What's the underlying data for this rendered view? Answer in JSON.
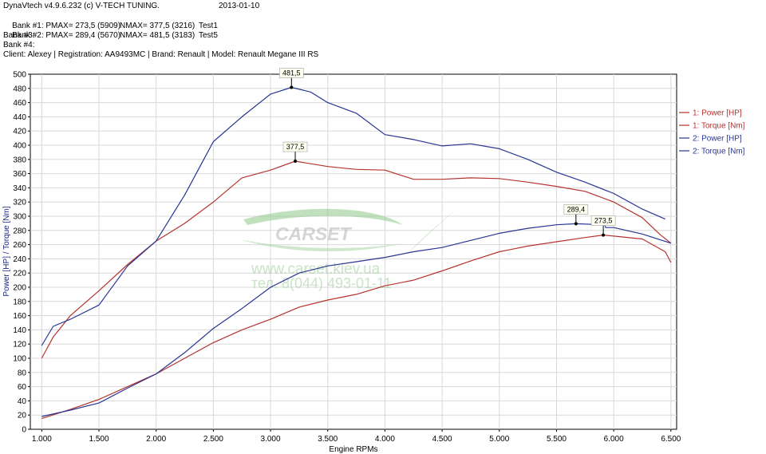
{
  "header": {
    "line1": "DynaVtech v4.9.6.232 (c) V-TECH TUNING.",
    "date": "2013-01-10",
    "bank1": {
      "label": "Bank #1: PMAX= 273,5 (5909)",
      "nmax": "NMAX= 377,5 (3216)",
      "test": "Test1"
    },
    "bank2": {
      "label": "Bank #2: PMAX= 289,4 (5670)",
      "nmax": "NMAX= 481,5 (3183)",
      "test": "Test5"
    },
    "bank3": "Bank #3:",
    "bank4": "Bank #4:",
    "client": "Client: Alexey | Registration: AA9493MC | Brand: Renault | Model: Renault Megane III RS"
  },
  "watermark": {
    "brand": "CARSET",
    "url": "www.carset.kiev.ua",
    "phone": "тел. 8(044) 493-01-11"
  },
  "chart_data": {
    "type": "line",
    "xlabel": "Engine RPMs",
    "ylabel": "Power [HP] / Torque [Nm]",
    "xlim": [
      900,
      6550
    ],
    "ylim": [
      0,
      500
    ],
    "x_ticks": [
      "1.000",
      "1.500",
      "2.000",
      "2.500",
      "3.000",
      "3.500",
      "4.000",
      "4.500",
      "5.000",
      "5.500",
      "6.000",
      "6.500"
    ],
    "y_ticks": [
      "0",
      "20",
      "40",
      "60",
      "80",
      "100",
      "120",
      "140",
      "160",
      "180",
      "200",
      "220",
      "240",
      "260",
      "280",
      "300",
      "320",
      "340",
      "360",
      "380",
      "400",
      "420",
      "440",
      "460",
      "480",
      "500"
    ],
    "grid": true,
    "legend_position": "right",
    "colors": {
      "red": "#b5332e",
      "blue": "#283593"
    },
    "series": [
      {
        "name": "1: Power [HP]",
        "color": "#b5332e",
        "points": [
          [
            1000,
            15
          ],
          [
            1250,
            28
          ],
          [
            1500,
            42
          ],
          [
            1750,
            60
          ],
          [
            2000,
            78
          ],
          [
            2250,
            100
          ],
          [
            2500,
            122
          ],
          [
            2750,
            140
          ],
          [
            3000,
            155
          ],
          [
            3250,
            172
          ],
          [
            3500,
            182
          ],
          [
            3750,
            190
          ],
          [
            4000,
            202
          ],
          [
            4250,
            210
          ],
          [
            4500,
            223
          ],
          [
            4750,
            237
          ],
          [
            5000,
            250
          ],
          [
            5250,
            258
          ],
          [
            5500,
            264
          ],
          [
            5750,
            270
          ],
          [
            5909,
            273.5
          ],
          [
            6000,
            272
          ],
          [
            6250,
            268
          ],
          [
            6450,
            250
          ],
          [
            6500,
            235
          ]
        ]
      },
      {
        "name": "1: Torque [Nm]",
        "color": "#b5332e",
        "points": [
          [
            1000,
            100
          ],
          [
            1100,
            130
          ],
          [
            1250,
            160
          ],
          [
            1500,
            195
          ],
          [
            1750,
            232
          ],
          [
            2000,
            265
          ],
          [
            2250,
            290
          ],
          [
            2500,
            320
          ],
          [
            2750,
            354
          ],
          [
            3000,
            365
          ],
          [
            3216,
            377.5
          ],
          [
            3500,
            370
          ],
          [
            3750,
            366
          ],
          [
            4000,
            365
          ],
          [
            4250,
            352
          ],
          [
            4500,
            352
          ],
          [
            4750,
            354
          ],
          [
            5000,
            353
          ],
          [
            5250,
            348
          ],
          [
            5500,
            342
          ],
          [
            5750,
            335
          ],
          [
            6000,
            320
          ],
          [
            6250,
            298
          ],
          [
            6400,
            275
          ],
          [
            6500,
            262
          ]
        ]
      },
      {
        "name": "2: Power [HP]",
        "color": "#283593",
        "points": [
          [
            1000,
            18
          ],
          [
            1250,
            27
          ],
          [
            1500,
            37
          ],
          [
            1750,
            58
          ],
          [
            2000,
            78
          ],
          [
            2250,
            108
          ],
          [
            2500,
            142
          ],
          [
            2750,
            170
          ],
          [
            3000,
            200
          ],
          [
            3250,
            220
          ],
          [
            3500,
            230
          ],
          [
            3750,
            236
          ],
          [
            4000,
            242
          ],
          [
            4250,
            250
          ],
          [
            4500,
            256
          ],
          [
            4750,
            266
          ],
          [
            5000,
            276
          ],
          [
            5250,
            283
          ],
          [
            5500,
            288
          ],
          [
            5670,
            289.4
          ],
          [
            5900,
            288
          ],
          [
            5910,
            293
          ],
          [
            5930,
            284
          ],
          [
            6000,
            284
          ],
          [
            6250,
            275
          ],
          [
            6500,
            262
          ]
        ]
      },
      {
        "name": "2: Torque [Nm]",
        "color": "#283593",
        "points": [
          [
            1000,
            118
          ],
          [
            1100,
            145
          ],
          [
            1250,
            155
          ],
          [
            1500,
            175
          ],
          [
            1750,
            230
          ],
          [
            2000,
            265
          ],
          [
            2250,
            330
          ],
          [
            2500,
            405
          ],
          [
            2750,
            440
          ],
          [
            3000,
            472
          ],
          [
            3183,
            481.5
          ],
          [
            3350,
            475
          ],
          [
            3500,
            460
          ],
          [
            3750,
            445
          ],
          [
            4000,
            415
          ],
          [
            4250,
            408
          ],
          [
            4500,
            399
          ],
          [
            4750,
            402
          ],
          [
            5000,
            395
          ],
          [
            5250,
            380
          ],
          [
            5500,
            362
          ],
          [
            5750,
            348
          ],
          [
            6000,
            332
          ],
          [
            6250,
            310
          ],
          [
            6450,
            296
          ]
        ]
      }
    ],
    "annotations": [
      {
        "label": "481,5",
        "x": 3183,
        "y": 481.5
      },
      {
        "label": "377,5",
        "x": 3216,
        "y": 377.5
      },
      {
        "label": "289,4",
        "x": 5670,
        "y": 289.4
      },
      {
        "label": "273,5",
        "x": 5909,
        "y": 273.5
      }
    ]
  }
}
